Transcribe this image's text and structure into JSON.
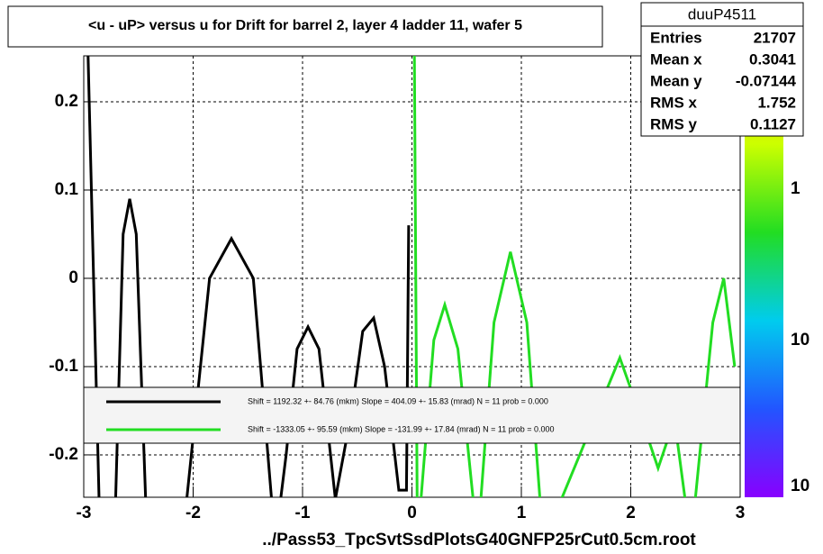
{
  "chart_data": {
    "type": "line",
    "title": "<u - uP>       versus   u for Drift for barrel 2, layer 4 ladder 11, wafer 5",
    "x_label": "../Pass53_TpcSvtSsdPlotsG40GNFP25rCut0.5cm.root",
    "xlim": [
      -3,
      3
    ],
    "xticks": [
      -3,
      -2,
      -1,
      0,
      1,
      2,
      3
    ],
    "ylim": [
      -0.248,
      0.252
    ],
    "yticks": [
      -0.2,
      -0.1,
      0,
      0.1,
      0.2
    ],
    "grid": true,
    "zticks": [
      "1",
      "10",
      "10"
    ],
    "stats": {
      "name": "duuP4511",
      "rows": [
        {
          "label": "Entries",
          "value": "21707"
        },
        {
          "label": "Mean x",
          "value": "0.3041"
        },
        {
          "label": "Mean y",
          "value": "-0.07144"
        },
        {
          "label": "RMS x",
          "value": "1.752"
        },
        {
          "label": "RMS y",
          "value": "0.1127"
        }
      ]
    },
    "series": [
      {
        "name": "Shift =  1192.32 +- 84.76 (mkm) Slope =   404.09 +- 15.83 (mrad)  N = 11 prob = 0.000",
        "color": "#000000",
        "x": [
          -2.97,
          -2.85,
          -2.72,
          -2.64,
          -2.58,
          -2.52,
          -2.42,
          -2.1,
          -1.85,
          -1.65,
          -1.45,
          -1.25,
          -1.15,
          -1.05,
          -0.95,
          -0.85,
          -0.7,
          -0.55,
          -0.45,
          -0.35,
          -0.25,
          -0.12,
          -0.05,
          -0.03
        ],
        "values": [
          0.3,
          -0.3,
          -0.3,
          0.05,
          0.09,
          0.05,
          -0.3,
          -0.3,
          0.0,
          0.045,
          0.0,
          -0.3,
          -0.2,
          -0.08,
          -0.055,
          -0.08,
          -0.25,
          -0.15,
          -0.06,
          -0.045,
          -0.1,
          -0.24,
          -0.24,
          0.06
        ]
      },
      {
        "name": "Shift = -1333.05 +- 95.59 (mkm) Slope =  -131.99 +- 17.84 (mrad)  N = 11 prob = 0.000",
        "color": "#22dd22",
        "x": [
          0.02,
          0.05,
          0.2,
          0.3,
          0.42,
          0.6,
          0.75,
          0.9,
          1.05,
          1.2,
          1.7,
          1.9,
          2.1,
          2.25,
          2.4,
          2.55,
          2.75,
          2.85,
          2.95
        ],
        "values": [
          0.3,
          -0.3,
          -0.07,
          -0.03,
          -0.08,
          -0.3,
          -0.05,
          0.03,
          -0.05,
          -0.3,
          -0.15,
          -0.09,
          -0.16,
          -0.215,
          -0.16,
          -0.3,
          -0.05,
          0.0,
          -0.1
        ]
      }
    ]
  }
}
